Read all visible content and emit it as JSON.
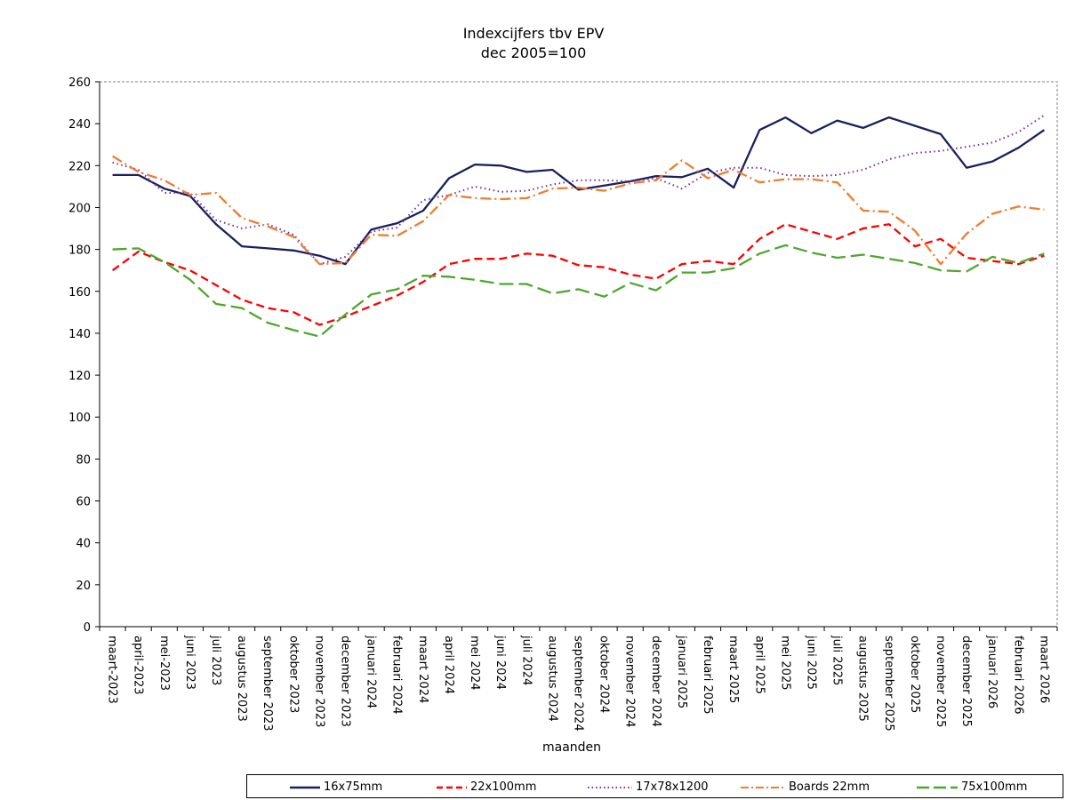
{
  "chart_data": {
    "type": "line",
    "title": "Indexcijfers tbv EPV",
    "subtitle": "dec 2005=100",
    "xlabel": "maanden",
    "ylabel": "",
    "ylim": [
      0,
      260
    ],
    "yticks": [
      0,
      20,
      40,
      60,
      80,
      100,
      120,
      140,
      160,
      180,
      200,
      220,
      240,
      260
    ],
    "categories": [
      "maart-2023",
      "april-2023",
      "mei-2023",
      "juni 2023",
      "juli 2023",
      "augustus 2023",
      "september 2023",
      "oktober 2023",
      "november 2023",
      "december 2023",
      "januari 2024",
      "februari 2024",
      "maart 2024",
      "april 2024",
      "mei 2024",
      "juni 2024",
      "juli 2024",
      "augustus 2024",
      "september 2024",
      "oktober 2024",
      "november 2024",
      "december 2024",
      "januari 2025",
      "februari 2025",
      "maart 2025",
      "april 2025",
      "mei 2025",
      "juni 2025",
      "juli 2025",
      "augustus 2025",
      "september 2025",
      "oktober 2025",
      "november 2025",
      "december 2025",
      "januari 2026",
      "februari 2026",
      "maart 2026"
    ],
    "series": [
      {
        "name": "16x75mm",
        "color": "#1a1f5e",
        "dash": "solid",
        "values": [
          215.5,
          215.5,
          209,
          205.5,
          192,
          181.5,
          180.5,
          179.5,
          177,
          173,
          189.5,
          192.5,
          198.5,
          214,
          220.5,
          220,
          217,
          218,
          208.5,
          210.5,
          212.5,
          215,
          214.5,
          218.5,
          209.5,
          237,
          243,
          235.5,
          241.5,
          238,
          243,
          239,
          235,
          219,
          222,
          228.5,
          237
        ]
      },
      {
        "name": "22x100mm",
        "color": "#ff0000",
        "dash": "dash",
        "values": [
          170,
          179,
          174,
          170,
          163,
          156,
          152,
          150,
          144,
          148,
          153,
          158,
          164.5,
          173,
          175.5,
          175.5,
          178,
          177,
          172.5,
          171.5,
          168,
          166,
          173,
          174.5,
          173,
          185,
          192,
          188.5,
          185,
          190,
          192,
          181.5,
          185,
          176,
          174.5,
          173,
          177
        ]
      },
      {
        "name": "17x78x1200",
        "color": "#7030a0",
        "dash": "dot",
        "values": [
          221.5,
          218,
          207,
          207,
          194,
          190,
          192,
          187,
          173,
          176.5,
          188.5,
          190.5,
          203.5,
          206,
          210,
          207.5,
          208,
          211,
          213,
          213,
          212.5,
          214,
          209,
          216.5,
          219,
          219,
          215.5,
          215,
          215.5,
          218,
          223,
          226,
          227,
          229,
          231,
          236,
          244
        ]
      },
      {
        "name": "Boards 22mm",
        "color": "#ed7d31",
        "dash": "dashdot",
        "values": [
          224.5,
          217,
          213,
          206,
          207,
          195,
          191,
          186,
          173,
          173.5,
          187,
          186.5,
          193.5,
          206,
          204.5,
          204,
          204.5,
          209,
          209.5,
          208,
          211.5,
          213,
          222.5,
          214,
          218,
          212,
          213.5,
          213.5,
          212,
          198.5,
          198,
          189,
          173,
          187.5,
          197,
          200.5,
          199
        ]
      },
      {
        "name": "75x100mm",
        "color": "#4ea72e",
        "dash": "longdash",
        "values": [
          180,
          180.5,
          174,
          165.5,
          154,
          152,
          145,
          141.5,
          138.5,
          149,
          158.5,
          161,
          167.5,
          167,
          165.5,
          163.5,
          163.5,
          159,
          161,
          157.5,
          164,
          160.5,
          169,
          169,
          171,
          178,
          182,
          178.5,
          176,
          177.5,
          175.5,
          173.5,
          170,
          169.5,
          176.5,
          173.5,
          178
        ]
      }
    ]
  }
}
